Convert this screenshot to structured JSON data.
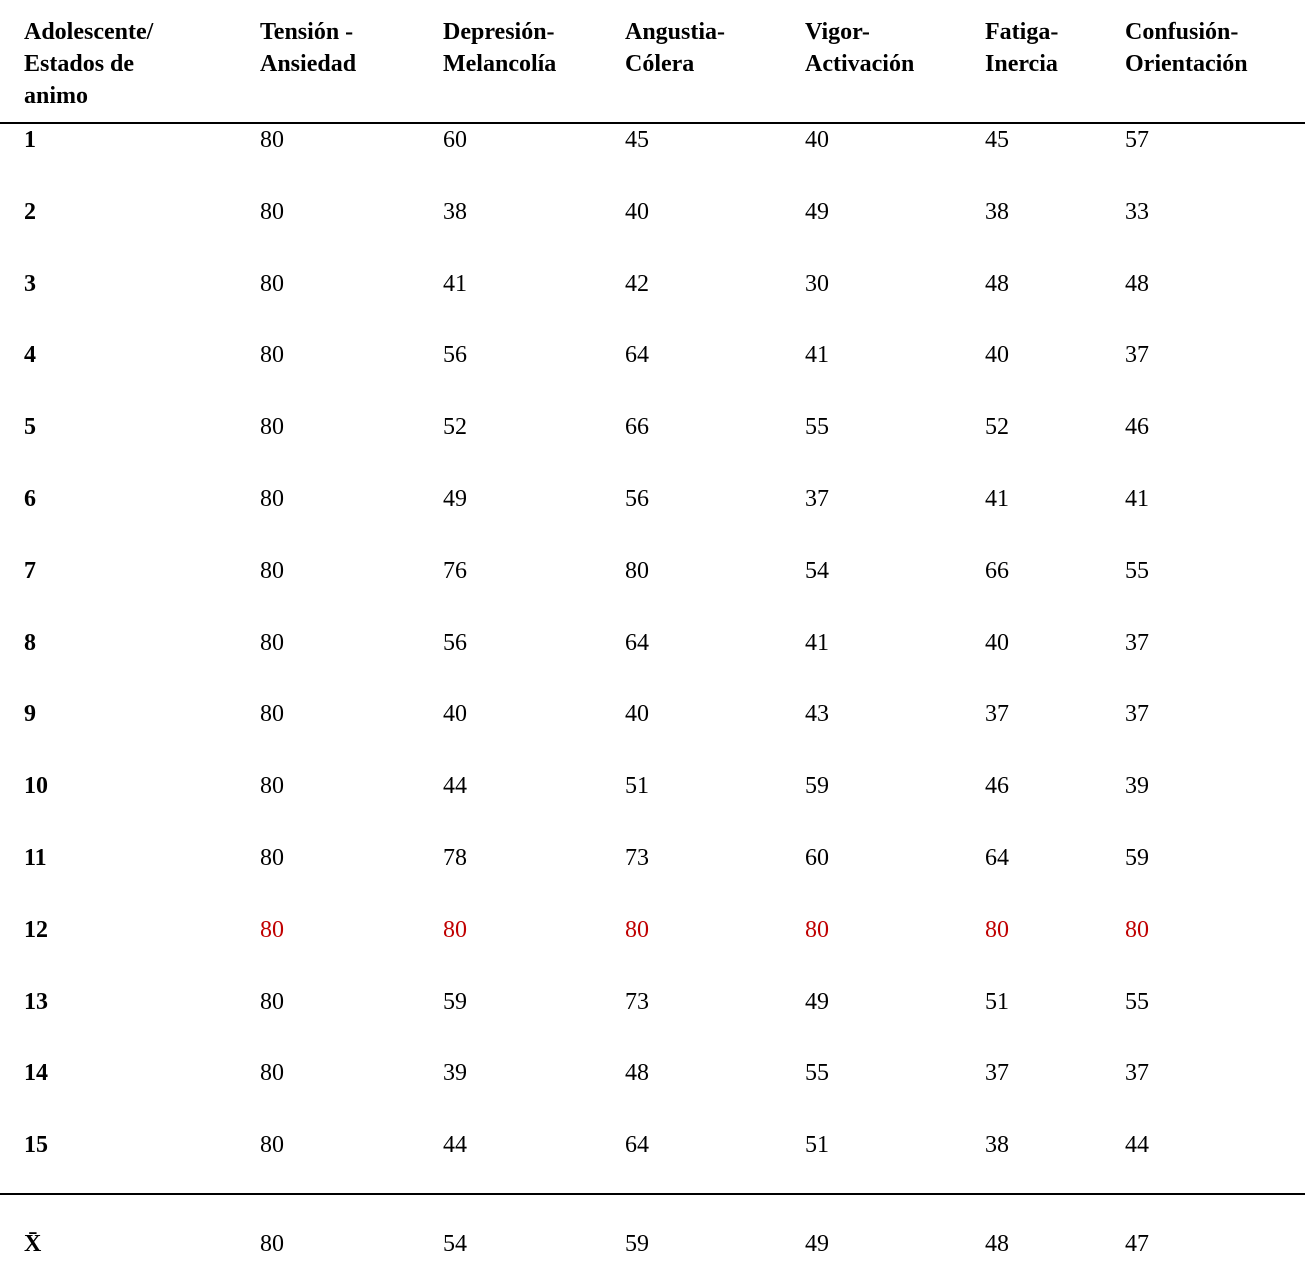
{
  "table": {
    "header": [
      [
        "Adolescente/",
        "Estados de",
        "animo"
      ],
      [
        "Tensión -",
        "Ansiedad"
      ],
      [
        "Depresión-",
        "Melancolía"
      ],
      [
        "Angustia-",
        "Cólera"
      ],
      [
        "Vigor-",
        "Activación"
      ],
      [
        "Fatiga-",
        "Inercia"
      ],
      [
        "Confusión-",
        "Orientación"
      ]
    ],
    "rows": [
      {
        "label": "1",
        "cells": [
          "80",
          "60",
          "45",
          "40",
          "45",
          "57"
        ]
      },
      {
        "label": "2",
        "cells": [
          "80",
          "38",
          "40",
          "49",
          "38",
          "33"
        ]
      },
      {
        "label": "3",
        "cells": [
          "80",
          "41",
          "42",
          "30",
          "48",
          "48"
        ]
      },
      {
        "label": "4",
        "cells": [
          "80",
          "56",
          "64",
          "41",
          "40",
          "37"
        ]
      },
      {
        "label": "5",
        "cells": [
          "80",
          "52",
          "66",
          "55",
          "52",
          "46"
        ]
      },
      {
        "label": "6",
        "cells": [
          "80",
          "49",
          "56",
          "37",
          "41",
          "41"
        ]
      },
      {
        "label": "7",
        "cells": [
          "80",
          "76",
          "80",
          "54",
          "66",
          "55"
        ]
      },
      {
        "label": "8",
        "cells": [
          "80",
          "56",
          "64",
          "41",
          "40",
          "37"
        ]
      },
      {
        "label": "9",
        "cells": [
          "80",
          "40",
          "40",
          "43",
          "37",
          "37"
        ]
      },
      {
        "label": "10",
        "cells": [
          "80",
          "44",
          "51",
          "59",
          "46",
          "39"
        ]
      },
      {
        "label": "11",
        "cells": [
          "80",
          "78",
          "73",
          "60",
          "64",
          "59"
        ]
      },
      {
        "label": "12",
        "cells": [
          "80",
          "80",
          "80",
          "80",
          "80",
          "80"
        ],
        "color": "#c00000"
      },
      {
        "label": "13",
        "cells": [
          "80",
          "59",
          "73",
          "49",
          "51",
          "55"
        ]
      },
      {
        "label": "14",
        "cells": [
          "80",
          "39",
          "48",
          "55",
          "37",
          "37"
        ]
      },
      {
        "label": "15",
        "cells": [
          "80",
          "44",
          "64",
          "51",
          "38",
          "44"
        ]
      }
    ],
    "summary": {
      "label": "X̄",
      "cells": [
        "80",
        "54",
        "59",
        "49",
        "48",
        "47"
      ]
    }
  }
}
